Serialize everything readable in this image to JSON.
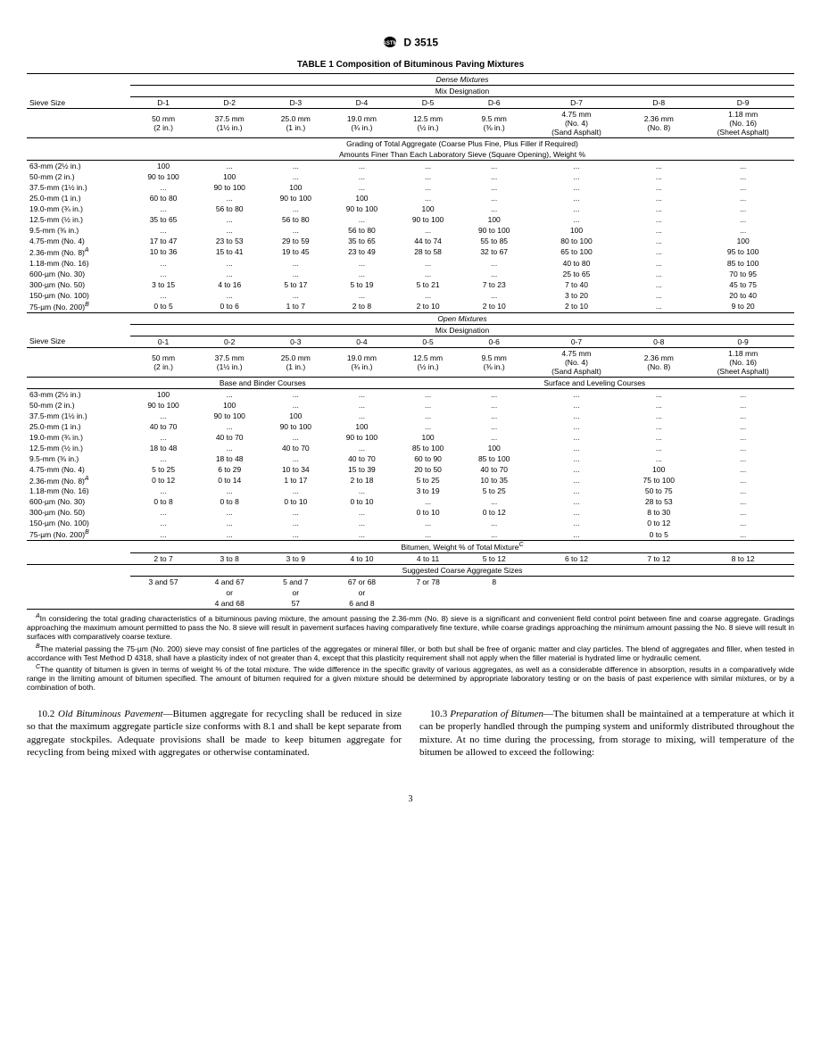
{
  "header": {
    "designation": "D 3515"
  },
  "table": {
    "title": "TABLE 1  Composition of Bituminous Paving Mixtures",
    "section1": {
      "header": "Dense Mixtures",
      "subheader": "Mix Designation",
      "sieve_label": "Sieve Size",
      "cols": [
        "D-1",
        "D-2",
        "D-3",
        "D-4",
        "D-5",
        "D-6",
        "D-7",
        "D-8",
        "D-9"
      ],
      "sizes_line1": [
        "50 mm",
        "37.5 mm",
        "25.0 mm",
        "19.0 mm",
        "12.5 mm",
        "9.5 mm",
        "4.75 mm",
        "2.36 mm",
        "1.18 mm"
      ],
      "sizes_line2": [
        "(2 in.)",
        "(1½ in.)",
        "(1 in.)",
        "(¾ in.)",
        "(½ in.)",
        "(⅜ in.)",
        "(No. 4)",
        "(No. 8)",
        "(No. 16)"
      ],
      "sizes_line3": [
        "",
        "",
        "",
        "",
        "",
        "",
        "(Sand Asphalt)",
        "",
        "(Sheet Asphalt)"
      ],
      "grading_header1": "Grading of Total Aggregate (Coarse Plus Fine, Plus Filler if Required)",
      "grading_header2": "Amounts Finer Than Each Laboratory Sieve (Square Opening), Weight %",
      "rows": [
        {
          "label": "63-mm (2½ in.)",
          "v": [
            "100",
            "...",
            "...",
            "...",
            "...",
            "...",
            "...",
            "...",
            "..."
          ]
        },
        {
          "label": "50-mm (2 in.)",
          "v": [
            "90 to 100",
            "100",
            "...",
            "...",
            "...",
            "...",
            "...",
            "...",
            "..."
          ]
        },
        {
          "label": "37.5-mm (1½ in.)",
          "v": [
            "...",
            "90 to 100",
            "100",
            "...",
            "...",
            "...",
            "...",
            "...",
            "..."
          ]
        },
        {
          "label": "25.0-mm (1 in.)",
          "v": [
            "60 to 80",
            "...",
            "90 to 100",
            "100",
            "...",
            "...",
            "...",
            "...",
            "..."
          ]
        },
        {
          "label": "19.0-mm (¾ in.)",
          "v": [
            "...",
            "56 to 80",
            "...",
            "90 to 100",
            "100",
            "...",
            "...",
            "...",
            "..."
          ]
        },
        {
          "label": "12.5-mm (½ in.)",
          "v": [
            "35 to 65",
            "...",
            "56 to 80",
            "...",
            "90 to 100",
            "100",
            "...",
            "...",
            "..."
          ]
        },
        {
          "label": "9.5-mm (⅜ in.)",
          "v": [
            "...",
            "...",
            "...",
            "56 to 80",
            "...",
            "90 to 100",
            "100",
            "...",
            "..."
          ]
        },
        {
          "label": "4.75-mm (No. 4)",
          "v": [
            "17 to 47",
            "23 to 53",
            "29 to 59",
            "35 to 65",
            "44 to 74",
            "55 to 85",
            "80 to 100",
            "...",
            "100"
          ]
        },
        {
          "label": "2.36-mm (No. 8)",
          "sup": "A",
          "v": [
            "10 to 36",
            "15 to 41",
            "19 to 45",
            "23 to 49",
            "28 to 58",
            "32 to 67",
            "65 to 100",
            "...",
            "95 to 100"
          ]
        },
        {
          "label": "1.18-mm (No. 16)",
          "v": [
            "...",
            "...",
            "...",
            "...",
            "...",
            "...",
            "40 to 80",
            "...",
            "85 to 100"
          ]
        },
        {
          "label": "600-µm (No. 30)",
          "v": [
            "...",
            "...",
            "...",
            "...",
            "...",
            "...",
            "25 to 65",
            "...",
            "70 to 95"
          ]
        },
        {
          "label": "300-µm (No. 50)",
          "v": [
            "3 to 15",
            "4 to 16",
            "5 to 17",
            "5 to 19",
            "5 to 21",
            "7 to 23",
            "7 to 40",
            "...",
            "45 to 75"
          ]
        },
        {
          "label": "150-µm (No. 100)",
          "v": [
            "...",
            "...",
            "...",
            "...",
            "...",
            "...",
            "3 to 20",
            "...",
            "20 to 40"
          ]
        },
        {
          "label": "75-µm (No. 200)",
          "sup": "B",
          "v": [
            "0 to 5",
            "0 to 6",
            "1 to 7",
            "2 to 8",
            "2 to 10",
            "2 to 10",
            "2 to 10",
            "...",
            "9 to 20"
          ]
        }
      ]
    },
    "section2": {
      "header": "Open Mixtures",
      "subheader": "Mix Designation",
      "sieve_label": "Sieve Size",
      "cols": [
        "0-1",
        "0-2",
        "0-3",
        "0-4",
        "0-5",
        "0-6",
        "0-7",
        "0-8",
        "0-9"
      ],
      "sizes_line1": [
        "50 mm",
        "37.5 mm",
        "25.0 mm",
        "19.0 mm",
        "12.5 mm",
        "9.5 mm",
        "4.75 mm",
        "2.36 mm",
        "1.18 mm"
      ],
      "sizes_line2": [
        "(2 in.)",
        "(1½ in.)",
        "(1 in.)",
        "(¾ in.)",
        "(½ in.)",
        "(⅜ in.)",
        "(No. 4)",
        "(No. 8)",
        "(No. 16)"
      ],
      "sizes_line3": [
        "",
        "",
        "",
        "",
        "",
        "",
        "(Sand Asphalt)",
        "",
        "(Sheet Asphalt)"
      ],
      "course_left": "Base and Binder Courses",
      "course_right": "Surface and Leveling Courses",
      "rows": [
        {
          "label": "63-mm (2½ in.)",
          "v": [
            "100",
            "...",
            "...",
            "...",
            "...",
            "...",
            "...",
            "...",
            "..."
          ]
        },
        {
          "label": "50-mm (2 in.)",
          "v": [
            "90 to 100",
            "100",
            "...",
            "...",
            "...",
            "...",
            "...",
            "...",
            "..."
          ]
        },
        {
          "label": "37.5-mm (1½ in.)",
          "v": [
            "...",
            "90 to 100",
            "100",
            "...",
            "...",
            "...",
            "...",
            "...",
            "..."
          ]
        },
        {
          "label": "25.0-mm (1 in.)",
          "v": [
            "40 to 70",
            "...",
            "90 to 100",
            "100",
            "...",
            "...",
            "...",
            "...",
            "..."
          ]
        },
        {
          "label": "19.0-mm (¾ in.)",
          "v": [
            "...",
            "40 to 70",
            "...",
            "90 to 100",
            "100",
            "...",
            "...",
            "...",
            "..."
          ]
        },
        {
          "label": "12.5-mm (½ in.)",
          "v": [
            "18 to 48",
            "...",
            "40 to 70",
            "...",
            "85 to 100",
            "100",
            "...",
            "...",
            "..."
          ]
        },
        {
          "label": "9.5-mm (⅜ in.)",
          "v": [
            "...",
            "18 to 48",
            "...",
            "40 to 70",
            "60 to 90",
            "85 to 100",
            "...",
            "...",
            "..."
          ]
        },
        {
          "label": "4.75-mm (No. 4)",
          "v": [
            "5 to 25",
            "6 to 29",
            "10 to 34",
            "15 to 39",
            "20 to 50",
            "40 to 70",
            "...",
            "100",
            "..."
          ]
        },
        {
          "label": "2.36-mm (No. 8)",
          "sup": "A",
          "v": [
            "0 to 12",
            "0 to 14",
            "1 to 17",
            "2 to 18",
            "5 to 25",
            "10 to 35",
            "...",
            "75 to 100",
            "..."
          ]
        },
        {
          "label": "1.18-mm (No. 16)",
          "v": [
            "...",
            "...",
            "...",
            "...",
            "3 to 19",
            "5 to 25",
            "...",
            "50 to 75",
            "..."
          ]
        },
        {
          "label": "600-µm (No. 30)",
          "v": [
            "0 to 8",
            "0 to 8",
            "0 to 10",
            "0 to 10",
            "...",
            "...",
            "...",
            "28 to 53",
            "..."
          ]
        },
        {
          "label": "300-µm (No. 50)",
          "v": [
            "...",
            "...",
            "...",
            "...",
            "0 to 10",
            "0 to 12",
            "...",
            "8 to 30",
            "..."
          ]
        },
        {
          "label": "150-µm (No. 100)",
          "v": [
            "...",
            "...",
            "...",
            "...",
            "...",
            "...",
            "...",
            "0 to 12",
            "..."
          ]
        },
        {
          "label": "75-µm (No. 200)",
          "sup": "B",
          "v": [
            "...",
            "...",
            "...",
            "...",
            "...",
            "...",
            "...",
            "0 to 5",
            "..."
          ]
        }
      ]
    },
    "bitumen": {
      "header": "Bitumen, Weight % of Total Mixture",
      "sup": "C",
      "row": [
        "2 to 7",
        "3 to 8",
        "3 to 9",
        "4 to 10",
        "4 to 11",
        "5 to 12",
        "6 to 12",
        "7 to 12",
        "8 to 12"
      ]
    },
    "aggregate": {
      "header": "Suggested Coarse Aggregate Sizes",
      "rows": [
        [
          "3 and 57",
          "4 and 67",
          "5 and 7",
          "67 or 68",
          "7 or 78",
          "8",
          "",
          "",
          ""
        ],
        [
          "",
          "or",
          "or",
          "or",
          "",
          "",
          "",
          "",
          ""
        ],
        [
          "",
          "4 and 68",
          "57",
          "6 and 8",
          "",
          "",
          "",
          "",
          ""
        ]
      ]
    }
  },
  "footnotes": {
    "A": "In considering the total grading characteristics of a bituminous paving mixture, the amount passing the 2.36-mm (No. 8) sieve is a significant and convenient field control point between fine and coarse aggregate. Gradings approaching the maximum amount permitted to pass the No. 8 sieve will result in pavement surfaces having comparatively fine texture, while coarse gradings approaching the minimum amount passing the No. 8 sieve will result in surfaces with comparatively coarse texture.",
    "B": "The material passing the 75-µm (No. 200) sieve may consist of fine particles of the aggregates or mineral filler, or both but shall be free of organic matter and clay particles. The blend of aggregates and filler, when tested in accordance with Test Method D 4318, shall have a plasticity index of not greater than 4, except that this plasticity requirement shall not apply when the filler material is hydrated lime or hydraulic cement.",
    "C": "The quantity of bitumen is given in terms of weight % of the total mixture. The wide difference in the specific gravity of various aggregates, as well as a considerable difference in absorption, results in a comparatively wide range in the limiting amount of bitumen specified. The amount of bitumen required for a given mixture should be determined by appropriate laboratory testing or on the basis of past experience with similar mixtures, or by a combination of both."
  },
  "body": {
    "p1_num": "10.2 ",
    "p1_head": "Old Bituminous Pavement",
    "p1_text": "—Bitumen aggregate for recycling shall be reduced in size so that the maximum aggregate particle size conforms with 8.1 and shall be kept separate from aggregate stockpiles. Adequate provisions shall be made to keep bitumen aggregate for recycling from being mixed with aggregates or otherwise contaminated.",
    "p2_num": "10.3 ",
    "p2_head": "Preparation of Bitumen",
    "p2_text": "—The bitumen shall be maintained at a temperature at which it can be properly handled through the pumping system and uniformly distributed throughout the mixture. At no time during the processing, from storage to mixing, will temperature of the bitumen be allowed to exceed the following:"
  },
  "page": "3"
}
